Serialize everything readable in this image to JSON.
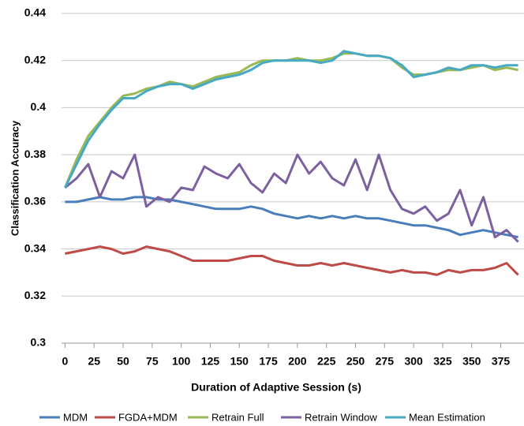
{
  "chart_data": {
    "type": "line",
    "x_label": "Duration of Adaptive Session (s)",
    "y_label": "Classification Accuracy",
    "x": [
      0,
      10,
      20,
      30,
      40,
      50,
      60,
      70,
      80,
      90,
      100,
      110,
      120,
      130,
      140,
      150,
      160,
      170,
      180,
      190,
      200,
      210,
      220,
      230,
      240,
      250,
      260,
      270,
      280,
      290,
      300,
      310,
      320,
      330,
      340,
      350,
      360,
      370,
      380,
      390
    ],
    "series": [
      {
        "name": "MDM",
        "color": "#4a7ebb",
        "values": [
          0.36,
          0.36,
          0.361,
          0.362,
          0.361,
          0.361,
          0.362,
          0.362,
          0.361,
          0.361,
          0.36,
          0.359,
          0.358,
          0.357,
          0.357,
          0.357,
          0.358,
          0.357,
          0.355,
          0.354,
          0.353,
          0.354,
          0.353,
          0.354,
          0.353,
          0.354,
          0.353,
          0.353,
          0.352,
          0.351,
          0.35,
          0.35,
          0.349,
          0.348,
          0.346,
          0.347,
          0.348,
          0.347,
          0.346,
          0.345
        ]
      },
      {
        "name": "FGDA+MDM",
        "color": "#be4b48",
        "values": [
          0.338,
          0.339,
          0.34,
          0.341,
          0.34,
          0.338,
          0.339,
          0.341,
          0.34,
          0.339,
          0.337,
          0.335,
          0.335,
          0.335,
          0.335,
          0.336,
          0.337,
          0.337,
          0.335,
          0.334,
          0.333,
          0.333,
          0.334,
          0.333,
          0.334,
          0.333,
          0.332,
          0.331,
          0.33,
          0.331,
          0.33,
          0.33,
          0.329,
          0.331,
          0.33,
          0.331,
          0.331,
          0.332,
          0.334,
          0.329
        ]
      },
      {
        "name": "Retrain Full",
        "color": "#98b954",
        "values": [
          0.366,
          0.378,
          0.388,
          0.394,
          0.4,
          0.405,
          0.406,
          0.408,
          0.409,
          0.411,
          0.41,
          0.409,
          0.411,
          0.413,
          0.414,
          0.415,
          0.418,
          0.42,
          0.42,
          0.42,
          0.421,
          0.42,
          0.42,
          0.421,
          0.423,
          0.423,
          0.422,
          0.422,
          0.421,
          0.417,
          0.414,
          0.414,
          0.415,
          0.416,
          0.416,
          0.417,
          0.418,
          0.416,
          0.417,
          0.416
        ]
      },
      {
        "name": "Retrain Window",
        "color": "#7d60a0",
        "values": [
          0.366,
          0.37,
          0.376,
          0.362,
          0.373,
          0.37,
          0.38,
          0.358,
          0.362,
          0.36,
          0.366,
          0.365,
          0.375,
          0.372,
          0.37,
          0.376,
          0.368,
          0.364,
          0.372,
          0.368,
          0.38,
          0.372,
          0.377,
          0.37,
          0.367,
          0.378,
          0.365,
          0.38,
          0.365,
          0.357,
          0.355,
          0.358,
          0.352,
          0.355,
          0.365,
          0.35,
          0.362,
          0.345,
          0.348,
          0.343
        ]
      },
      {
        "name": "Mean Estimation",
        "color": "#46aac5",
        "values": [
          0.366,
          0.376,
          0.386,
          0.393,
          0.399,
          0.404,
          0.404,
          0.407,
          0.409,
          0.41,
          0.41,
          0.408,
          0.41,
          0.412,
          0.413,
          0.414,
          0.416,
          0.419,
          0.42,
          0.42,
          0.42,
          0.42,
          0.419,
          0.42,
          0.424,
          0.423,
          0.422,
          0.422,
          0.421,
          0.418,
          0.413,
          0.414,
          0.415,
          0.417,
          0.416,
          0.418,
          0.418,
          0.417,
          0.418,
          0.418
        ]
      }
    ],
    "xlim": [
      -3,
      395
    ],
    "xticks": [
      0,
      25,
      50,
      75,
      100,
      125,
      150,
      175,
      200,
      225,
      250,
      275,
      300,
      325,
      350,
      375
    ],
    "ylim": [
      0.3,
      0.44
    ],
    "yticks": [
      0.3,
      0.32,
      0.34,
      0.36,
      0.38,
      0.4,
      0.42,
      0.44
    ],
    "grid": true,
    "legend": "bottom"
  }
}
